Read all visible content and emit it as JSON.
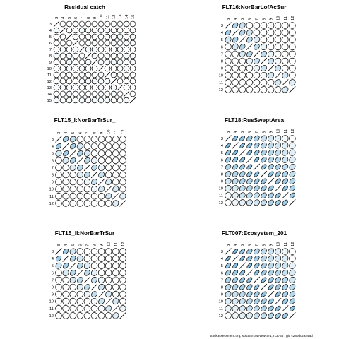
{
  "chart_data": [
    {
      "type": "correlation-matrix",
      "title": "Residual catch",
      "ages": [
        3,
        4,
        5,
        6,
        7,
        8,
        9,
        10,
        11,
        12,
        13,
        14,
        15
      ],
      "pattern": "near-zero",
      "positive_color": "#6aaed6"
    },
    {
      "type": "correlation-matrix",
      "title": "FLT16:NorBarLofAcSur",
      "ages": [
        3,
        4,
        5,
        6,
        7,
        8,
        9,
        10,
        11,
        12
      ],
      "pattern": "positive-near-diagonal",
      "positive_color": "#6aaed6"
    },
    {
      "type": "correlation-matrix",
      "title": "FLT15_I:NorBarTrSur_",
      "ages": [
        3,
        4,
        5,
        6,
        7,
        8,
        9,
        10,
        11,
        12
      ],
      "pattern": "positive-near-diagonal",
      "positive_color": "#6aaed6"
    },
    {
      "type": "correlation-matrix",
      "title": "FLT18:RusSweptArea",
      "ages": [
        3,
        4,
        5,
        6,
        7,
        8,
        9,
        10,
        11,
        12
      ],
      "pattern": "strong-positive",
      "positive_color": "#6aaed6"
    },
    {
      "type": "correlation-matrix",
      "title": "FLT15_II:NorBarTrSur",
      "ages": [
        3,
        4,
        5,
        6,
        7,
        8,
        9,
        10,
        11,
        12
      ],
      "pattern": "positive-near-diagonal",
      "positive_color": "#6aaed6"
    },
    {
      "type": "correlation-matrix",
      "title": "FLT007:Ecosystem_201",
      "ages": [
        3,
        4,
        5,
        6,
        7,
        8,
        9,
        10,
        11,
        12
      ],
      "pattern": "strong-positive",
      "positive_color": "#6aaed6"
    }
  ],
  "footer": "stockassessment.org, spict3TrcodNewcor1, r13755 , git: c28bdc2a44ad"
}
